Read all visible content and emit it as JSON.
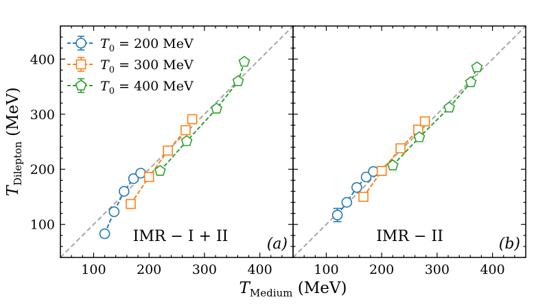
{
  "chart_data": {
    "type": "scatter",
    "xlabel": "T",
    "xlabel_sub": "Medium",
    "xlabel_unit": "(MeV)",
    "ylabel": "T",
    "ylabel_sub": "Dilepton",
    "ylabel_unit": "(MeV)",
    "xlim": [
      40,
      460
    ],
    "ylim": [
      40,
      460
    ],
    "xticks": [
      100,
      200,
      300,
      400
    ],
    "yticks": [
      100,
      200,
      300,
      400
    ],
    "reference_line": "y = x",
    "legend": [
      {
        "label_prefix": "T",
        "label_sub": "0",
        "label_value": " = 200 MeV",
        "color": "#1f77b4",
        "marker": "circle"
      },
      {
        "label_prefix": "T",
        "label_sub": "0",
        "label_value": " = 300 MeV",
        "color": "#ff7f0e",
        "marker": "square"
      },
      {
        "label_prefix": "T",
        "label_sub": "0",
        "label_value": " = 400 MeV",
        "color": "#2ca02c",
        "marker": "pentagon"
      }
    ],
    "panels": [
      {
        "name": "panel-a",
        "annotation": "IMR − I + II",
        "tag": "(a)",
        "series": [
          {
            "name": "T0 = 200 MeV",
            "color": "#1f77b4",
            "marker": "circle",
            "x": [
              120,
              137,
              155,
              172,
              185
            ],
            "y": [
              83,
              123,
              160,
              183,
              193
            ],
            "yerr": [
              0,
              0,
              0,
              0,
              0
            ]
          },
          {
            "name": "T0 = 300 MeV",
            "color": "#ff7f0e",
            "marker": "square",
            "x": [
              167,
              200,
              234,
              266,
              278
            ],
            "y": [
              137,
              186,
              234,
              271,
              291
            ],
            "yerr": [
              0,
              0,
              0,
              0,
              0
            ]
          },
          {
            "name": "T0 = 400 MeV",
            "color": "#2ca02c",
            "marker": "pentagon",
            "x": [
              220,
              268,
              322,
              361,
              372
            ],
            "y": [
              197,
              251,
              310,
              360,
              395
            ],
            "yerr": [
              0,
              0,
              0,
              0,
              0
            ]
          }
        ]
      },
      {
        "name": "panel-b",
        "annotation": "IMR − II",
        "tag": "(b)",
        "series": [
          {
            "name": "T0 = 200 MeV",
            "color": "#1f77b4",
            "marker": "circle",
            "x": [
              120,
              137,
              155,
              172,
              185
            ],
            "y": [
              117,
              140,
              167,
              186,
              196
            ],
            "yerr": [
              12,
              0,
              0,
              0,
              0
            ]
          },
          {
            "name": "T0 = 300 MeV",
            "color": "#ff7f0e",
            "marker": "square",
            "x": [
              167,
              200,
              234,
              266,
              278
            ],
            "y": [
              150,
              197,
              238,
              272,
              287
            ],
            "yerr": [
              0,
              0,
              0,
              0,
              0
            ]
          },
          {
            "name": "T0 = 400 MeV",
            "color": "#2ca02c",
            "marker": "pentagon",
            "x": [
              220,
              268,
              322,
              361,
              372
            ],
            "y": [
              207,
              258,
              312,
              358,
              385
            ],
            "yerr": [
              0,
              0,
              0,
              0,
              0
            ]
          }
        ]
      }
    ]
  }
}
